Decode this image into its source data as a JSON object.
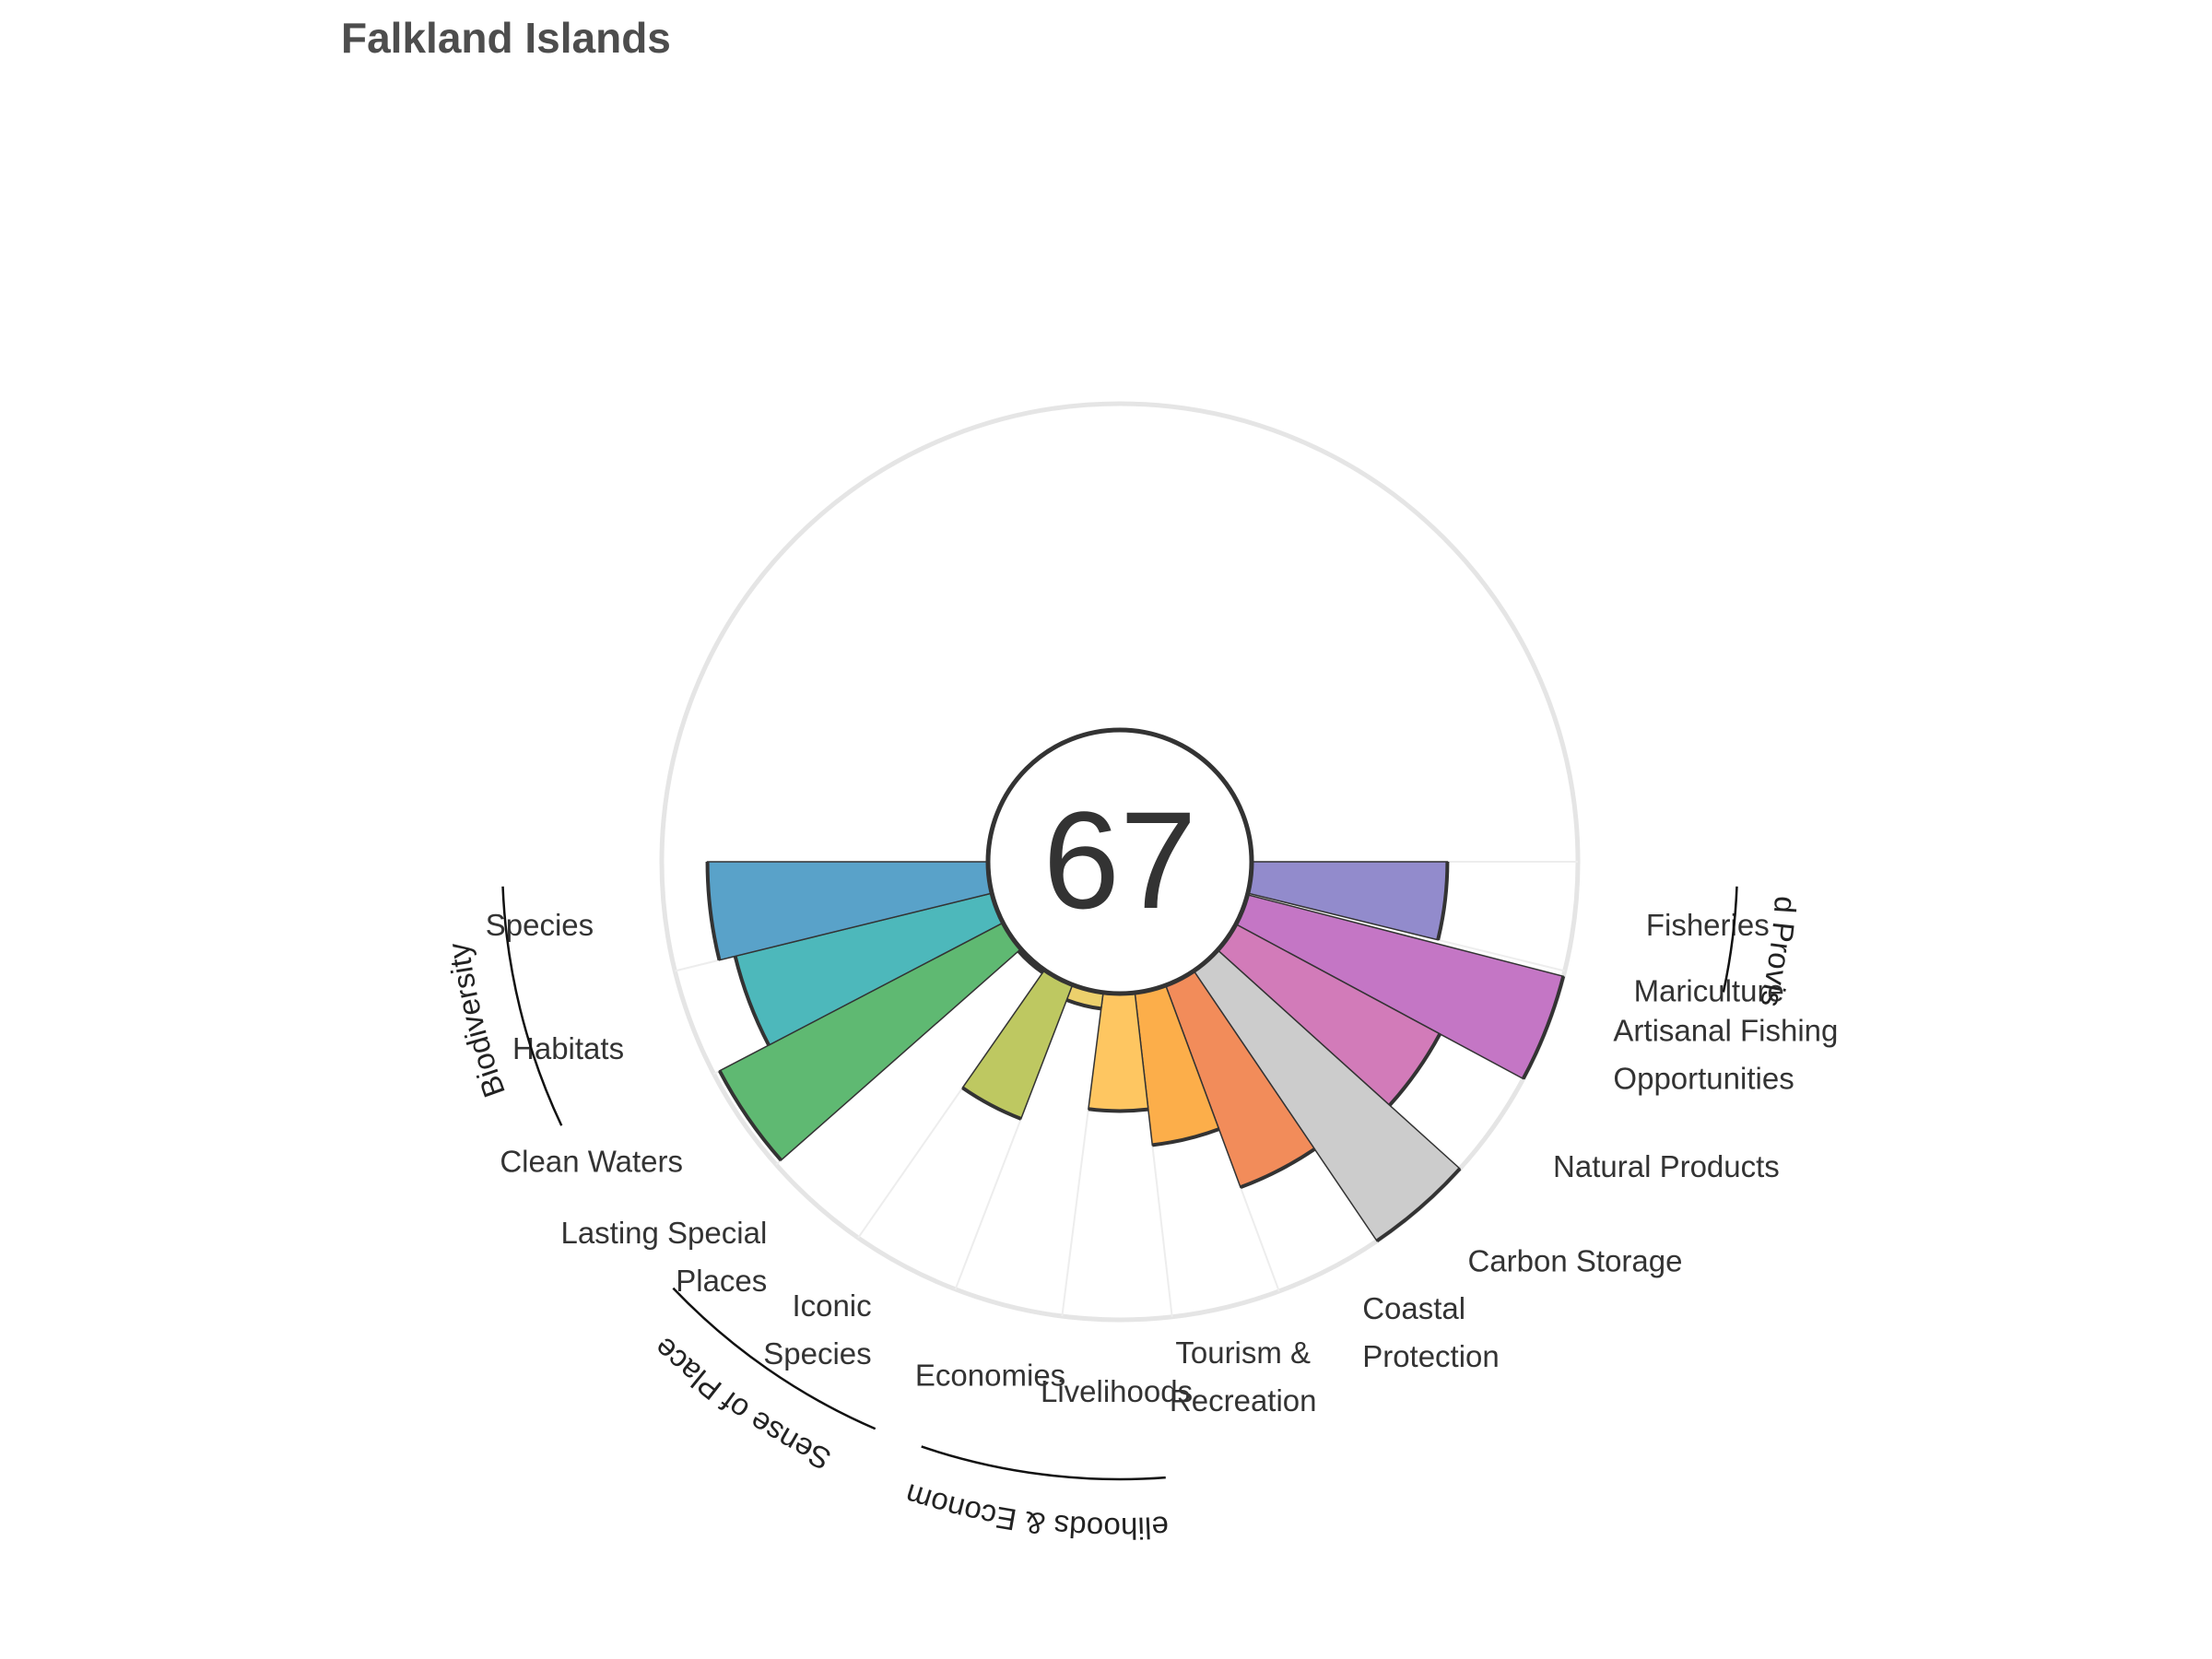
{
  "title": "Falkland Islands",
  "chart_data": {
    "type": "polar-bar",
    "title": "Falkland Islands",
    "overall_score": "67",
    "rmax": 100,
    "goals": [
      {
        "label": [
          "Fisheries"
        ],
        "value": 60,
        "weight": 1,
        "color": "#928bcc"
      },
      {
        "label": [
          "Mariculture"
        ],
        "value": 0,
        "weight": 0.05,
        "color": "#a59ad0"
      },
      {
        "label": [
          "Artisanal Fishing",
          "Opportunities"
        ],
        "value": 100,
        "weight": 1,
        "color": "#c476c5"
      },
      {
        "label": [
          "Natural Products"
        ],
        "value": 71,
        "weight": 1,
        "color": "#d27bb9"
      },
      {
        "label": [
          "Carbon Storage"
        ],
        "value": 100,
        "weight": 1,
        "color": "#cccccc"
      },
      {
        "label": [
          "Coastal",
          "Protection"
        ],
        "value": 66,
        "weight": 1,
        "color": "#f28c5a"
      },
      {
        "label": [
          "Tourism &",
          "Recreation"
        ],
        "value": 47,
        "weight": 1,
        "color": "#fcae4a"
      },
      {
        "label": [
          "Livelihoods"
        ],
        "value": 36,
        "weight": 1,
        "color": "#fec661"
      },
      {
        "label": [
          "Economies"
        ],
        "value": 5,
        "weight": 1,
        "color": "#ecd06c"
      },
      {
        "label": [
          "Iconic",
          "Species"
        ],
        "value": 44,
        "weight": 1,
        "color": "#bec861"
      },
      {
        "label": [
          "Lasting Special",
          "Places"
        ],
        "value": 1,
        "weight": 1,
        "color": "#86b861"
      },
      {
        "label": [
          "Clean Waters"
        ],
        "value": 98,
        "weight": 1,
        "color": "#5fb972"
      },
      {
        "label": [
          "Habitats"
        ],
        "value": 81,
        "weight": 1,
        "color": "#4db8bb"
      },
      {
        "label": [
          "Species"
        ],
        "value": 86,
        "weight": 1,
        "color": "#59a2c9"
      }
    ],
    "groups": [
      {
        "label": "Food Provision",
        "from": 0,
        "to": 1
      },
      {
        "label": "Biodiversity",
        "from": 12,
        "to": 13
      },
      {
        "label": "Livelihoods & Economies",
        "from": 7,
        "to": 8
      },
      {
        "label": "Sense of Place",
        "from": 9,
        "to": 10
      }
    ]
  }
}
